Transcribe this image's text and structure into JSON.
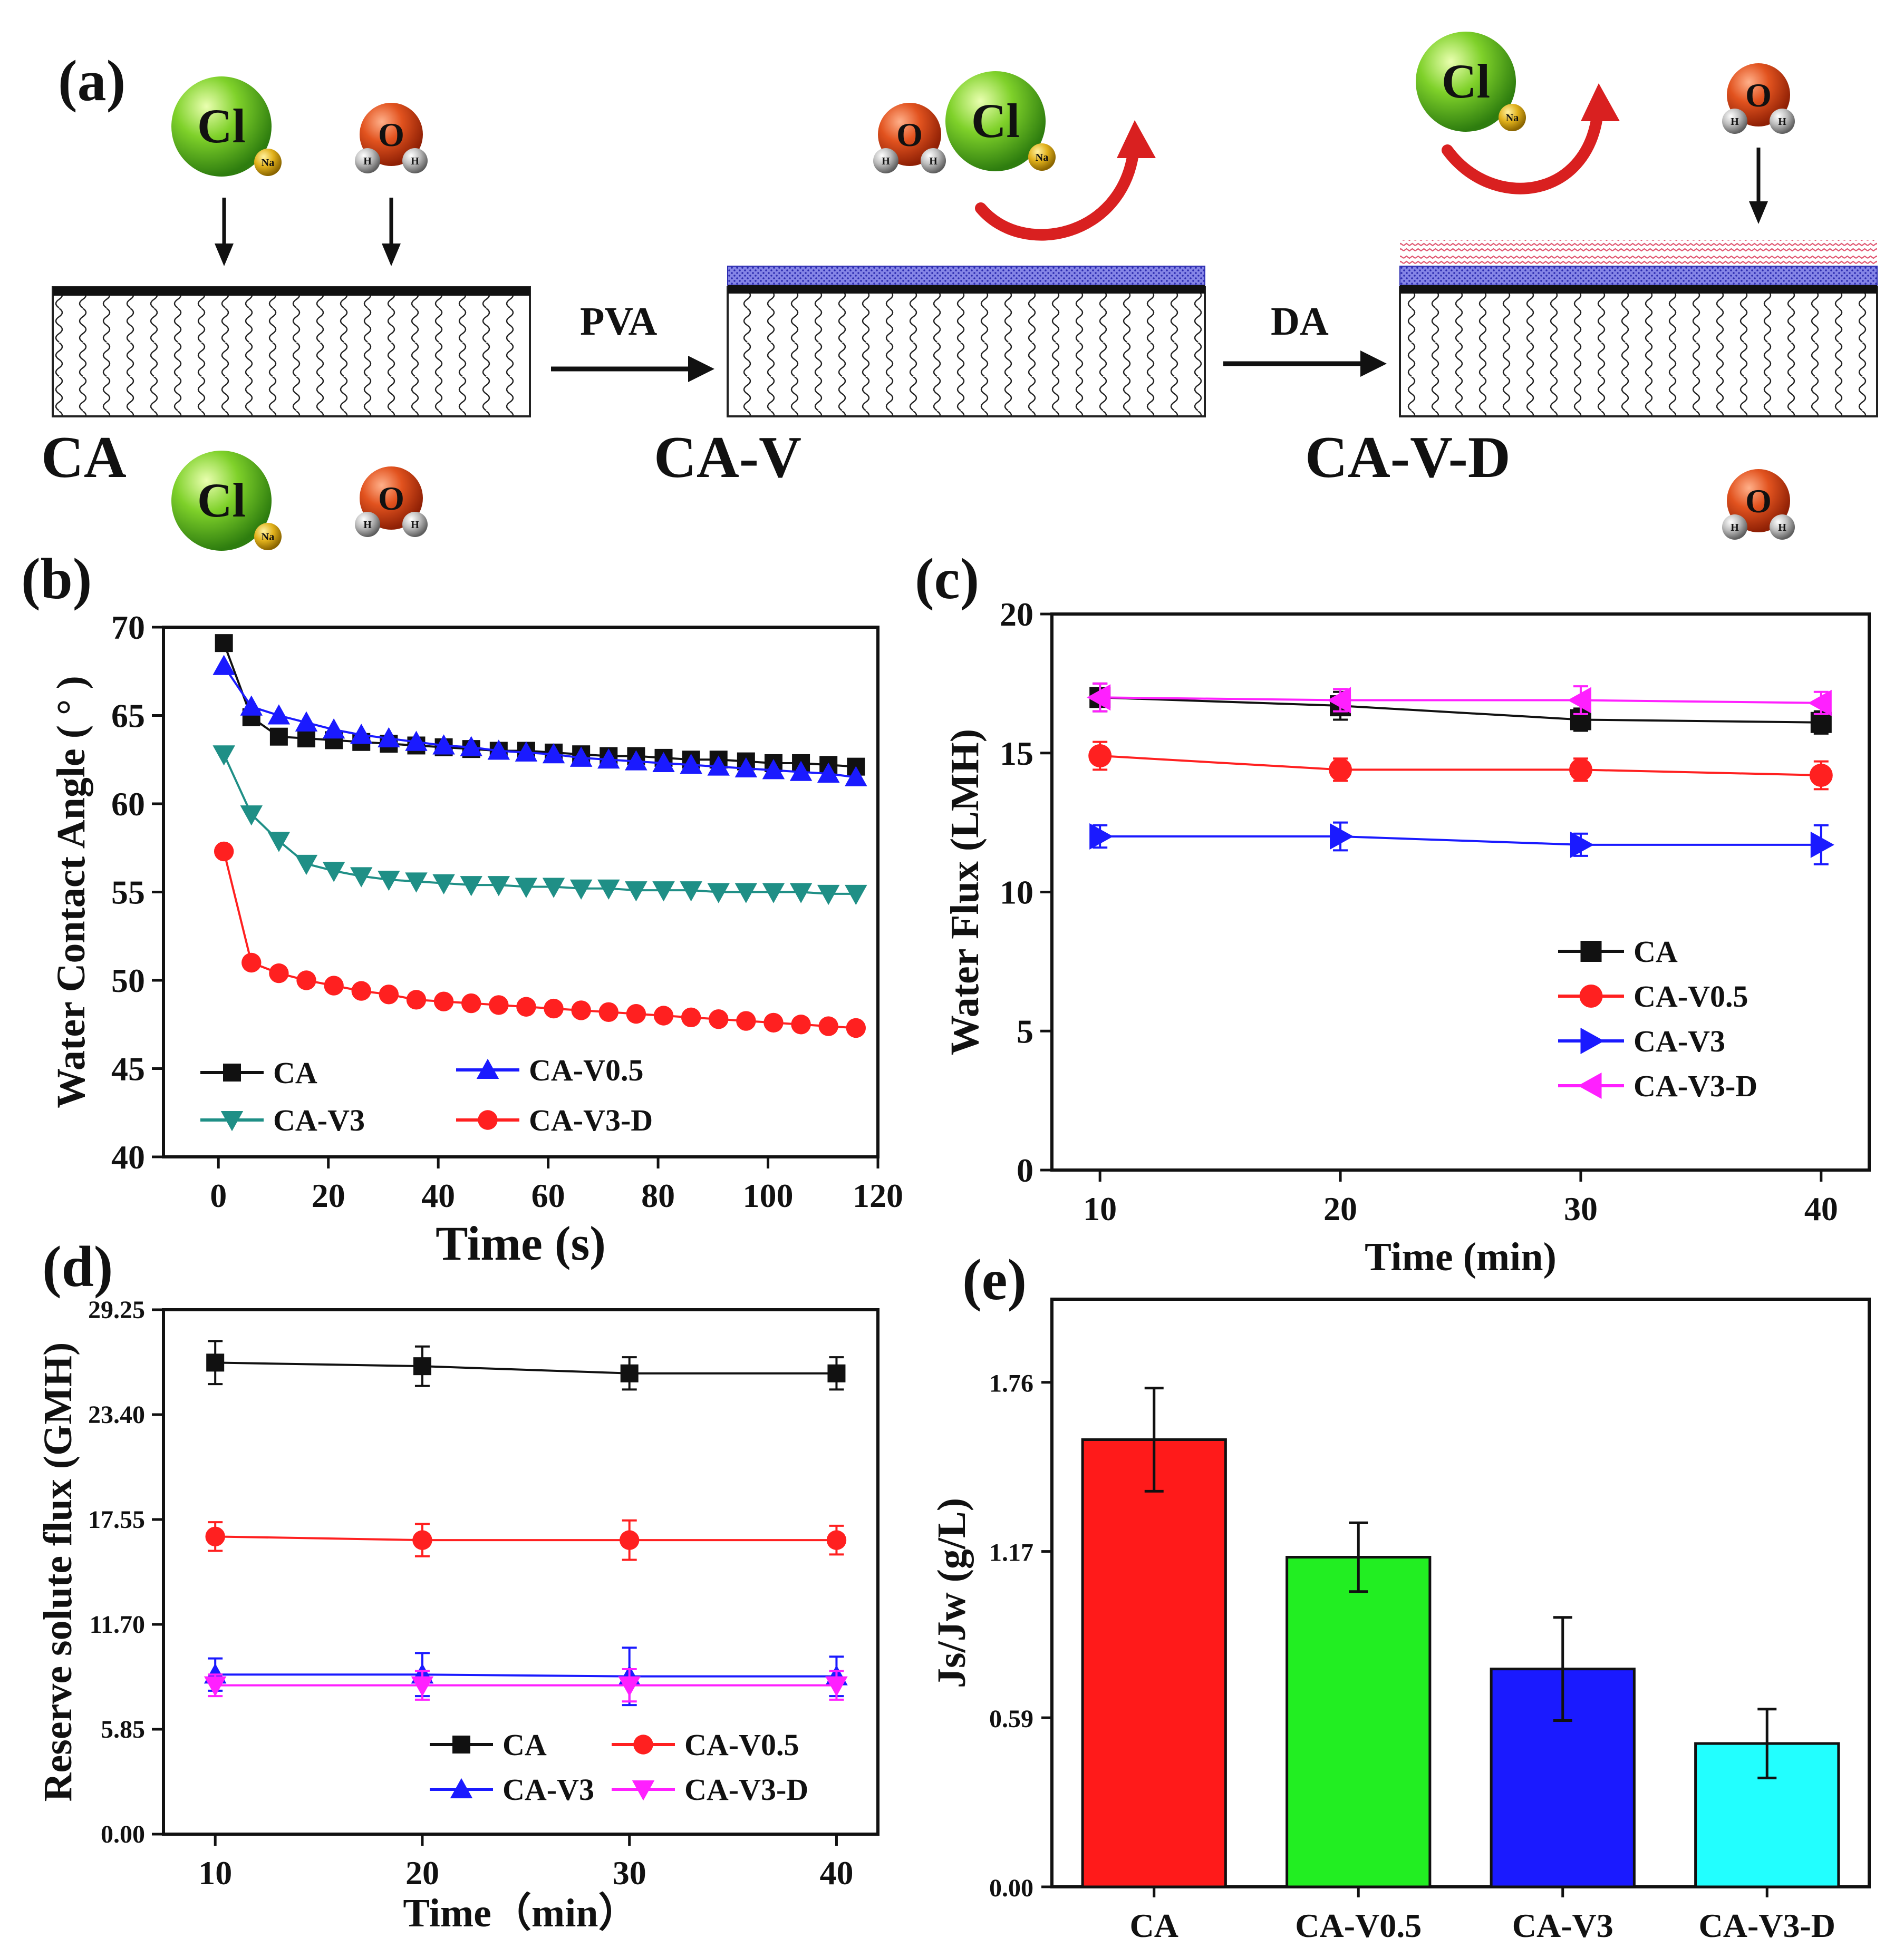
{
  "colors": {
    "black": "#111111",
    "red": "#ff2020",
    "blue": "#1a1aff",
    "teal": "#1f8f86",
    "magenta": "#ff20ff",
    "green": "#22ee22",
    "cyan": "#22ffff",
    "pva_layer": "#7b7bdb",
    "da_layer": "#e05570",
    "curl_arrow": "#d92020"
  },
  "panel_a": {
    "label": "(a)",
    "membranes": [
      "CA",
      "CA-V",
      "CA-V-D"
    ],
    "steps": [
      "PVA",
      "DA"
    ],
    "atoms": {
      "cl": "Cl",
      "na": "Na",
      "o": "O",
      "h": "H"
    }
  },
  "chart_data": [
    {
      "panel": "(b)",
      "type": "line",
      "xlabel": "Time (s)",
      "ylabel": "Water Contact Angle ( ° )",
      "xlim": [
        -10,
        120
      ],
      "ylim": [
        40,
        70
      ],
      "xticks": [
        0,
        20,
        40,
        60,
        80,
        100,
        120
      ],
      "yticks": [
        40,
        45,
        50,
        55,
        60,
        65,
        70
      ],
      "x": [
        1,
        6,
        11,
        16,
        21,
        26,
        31,
        36,
        41,
        46,
        51,
        56,
        61,
        66,
        71,
        76,
        81,
        86,
        91,
        96,
        101,
        106,
        111,
        116
      ],
      "series": [
        {
          "name": "CA",
          "marker": "square",
          "color": "#111111",
          "values": [
            69.1,
            64.9,
            63.8,
            63.7,
            63.6,
            63.5,
            63.4,
            63.3,
            63.2,
            63.1,
            63.0,
            63.0,
            62.9,
            62.8,
            62.7,
            62.7,
            62.6,
            62.5,
            62.5,
            62.4,
            62.3,
            62.3,
            62.2,
            62.1
          ]
        },
        {
          "name": "CA-V0.5",
          "marker": "triangle-up",
          "color": "#1a1aff",
          "values": [
            67.8,
            65.5,
            65.0,
            64.6,
            64.2,
            63.9,
            63.7,
            63.5,
            63.3,
            63.2,
            63.0,
            62.9,
            62.8,
            62.6,
            62.5,
            62.4,
            62.3,
            62.2,
            62.1,
            62.0,
            61.9,
            61.8,
            61.7,
            61.5
          ]
        },
        {
          "name": "CA-V3",
          "marker": "triangle-down",
          "color": "#1f8f86",
          "values": [
            62.8,
            59.4,
            57.9,
            56.6,
            56.2,
            55.9,
            55.7,
            55.6,
            55.5,
            55.4,
            55.4,
            55.3,
            55.3,
            55.2,
            55.2,
            55.1,
            55.1,
            55.1,
            55.0,
            55.0,
            55.0,
            55.0,
            54.9,
            54.9
          ]
        },
        {
          "name": "CA-V3-D",
          "marker": "circle",
          "color": "#ff2020",
          "values": [
            57.3,
            51.0,
            50.4,
            50.0,
            49.7,
            49.4,
            49.2,
            48.9,
            48.8,
            48.7,
            48.6,
            48.5,
            48.4,
            48.3,
            48.2,
            48.1,
            48.0,
            47.9,
            47.8,
            47.7,
            47.6,
            47.5,
            47.4,
            47.3
          ]
        }
      ]
    },
    {
      "panel": "(c)",
      "type": "line",
      "xlabel": "Time (min)",
      "ylabel": "Water Flux (LMH)",
      "xlim": [
        8,
        42
      ],
      "ylim": [
        0,
        20
      ],
      "xticks": [
        10,
        20,
        30,
        40
      ],
      "yticks": [
        0,
        5,
        10,
        15,
        20
      ],
      "x": [
        10,
        20,
        30,
        40
      ],
      "series": [
        {
          "name": "CA",
          "marker": "square",
          "color": "#111111",
          "values": [
            17.0,
            16.7,
            16.2,
            16.1
          ],
          "errors": [
            0.5,
            0.5,
            0.4,
            0.4
          ]
        },
        {
          "name": "CA-V0.5",
          "marker": "circle",
          "color": "#ff2020",
          "values": [
            14.9,
            14.4,
            14.4,
            14.2
          ],
          "errors": [
            0.5,
            0.4,
            0.4,
            0.5
          ]
        },
        {
          "name": "CA-V3",
          "marker": "triangle-right",
          "color": "#1a1aff",
          "values": [
            12.0,
            12.0,
            11.7,
            11.7
          ],
          "errors": [
            0.4,
            0.5,
            0.4,
            0.7
          ]
        },
        {
          "name": "CA-V3-D",
          "marker": "triangle-left",
          "color": "#ff20ff",
          "values": [
            17.0,
            16.9,
            16.9,
            16.8
          ],
          "errors": [
            0.5,
            0.4,
            0.5,
            0.4
          ]
        }
      ]
    },
    {
      "panel": "(d)",
      "type": "line",
      "xlabel": "Time（min）",
      "ylabel": "Reserve solute flux (GMH)",
      "xlim": [
        7.5,
        42
      ],
      "ylim": [
        0,
        29.25
      ],
      "xticks": [
        10,
        20,
        30,
        40
      ],
      "yticks": [
        "0.00",
        "5.85",
        "11.70",
        "17.55",
        "23.40",
        "29.25"
      ],
      "x": [
        10,
        20,
        30,
        40
      ],
      "series": [
        {
          "name": "CA",
          "marker": "square",
          "color": "#111111",
          "values": [
            26.3,
            26.1,
            25.7,
            25.7
          ],
          "errors": [
            1.2,
            1.1,
            0.9,
            0.9
          ]
        },
        {
          "name": "CA-V0.5",
          "marker": "circle",
          "color": "#ff2020",
          "values": [
            16.6,
            16.4,
            16.4,
            16.4
          ],
          "errors": [
            0.8,
            0.9,
            1.1,
            0.8
          ]
        },
        {
          "name": "CA-V3",
          "marker": "triangle-up",
          "color": "#1a1aff",
          "values": [
            8.9,
            8.9,
            8.8,
            8.8
          ],
          "errors": [
            0.9,
            1.2,
            1.6,
            1.1
          ]
        },
        {
          "name": "CA-V3-D",
          "marker": "triangle-down",
          "color": "#ff20ff",
          "values": [
            8.3,
            8.3,
            8.3,
            8.3
          ],
          "errors": [
            0.6,
            0.8,
            0.9,
            0.8
          ]
        }
      ]
    },
    {
      "panel": "(e)",
      "type": "bar",
      "xlabel": "",
      "ylabel": "Js/Jw (g/L)",
      "ylim": [
        0,
        2.05
      ],
      "yticks": [
        "0.00",
        "0.59",
        "1.17",
        "1.76"
      ],
      "categories": [
        "CA",
        "CA-V0.5",
        "CA-V3",
        "CA-V3-D"
      ],
      "values": [
        1.56,
        1.15,
        0.76,
        0.5
      ],
      "errors": [
        0.18,
        0.12,
        0.18,
        0.12
      ],
      "colors": [
        "#ff1a1a",
        "#22ee22",
        "#1a1aff",
        "#22ffff"
      ]
    }
  ]
}
